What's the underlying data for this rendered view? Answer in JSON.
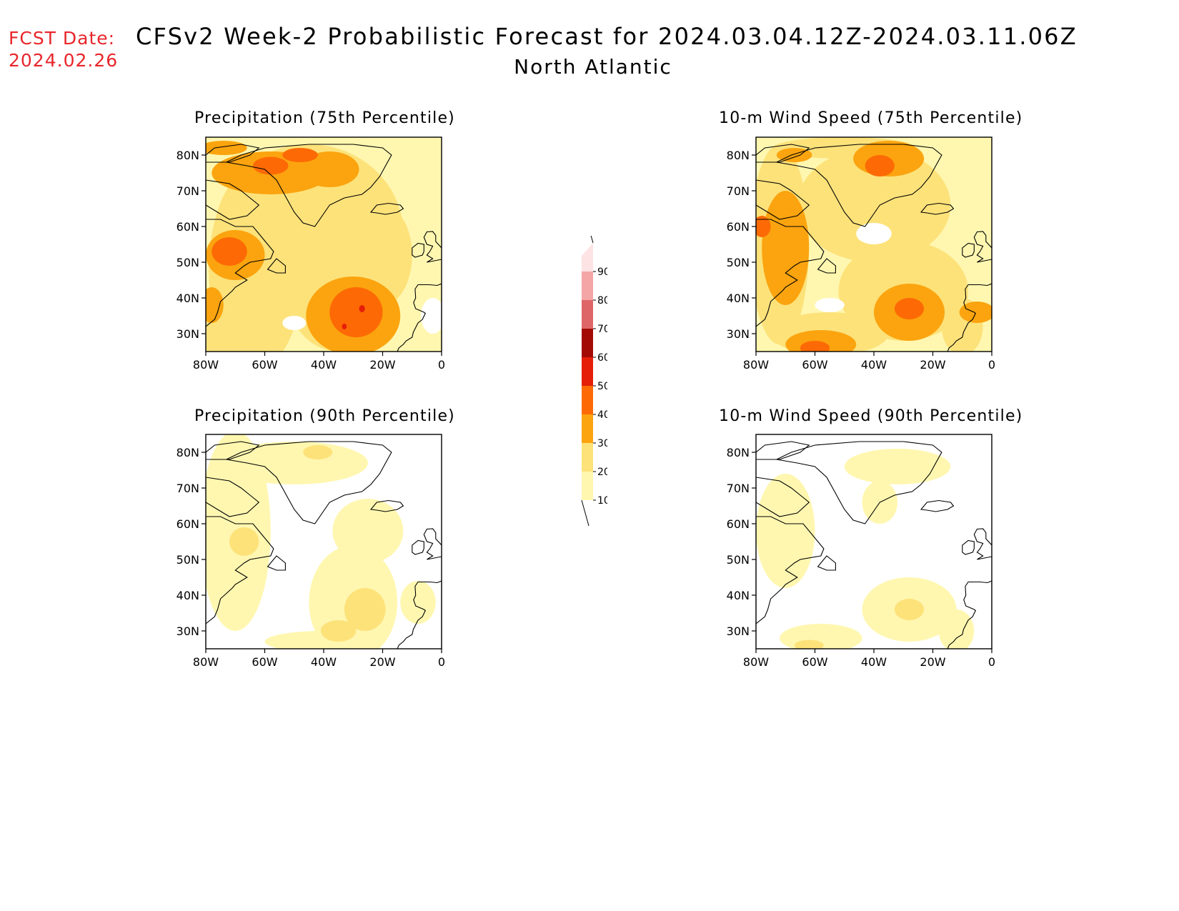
{
  "header": {
    "fcst_label": "FCST Date:",
    "fcst_date": "2024.02.26",
    "title": "CFSv2 Week-2 Probabilistic Forecast for 2024.03.04.12Z-2024.03.11.06Z",
    "subtitle": "North Atlantic"
  },
  "map": {
    "lon_ticks": [
      "80W",
      "60W",
      "40W",
      "20W",
      "0"
    ],
    "lat_ticks": [
      "80N",
      "70N",
      "60N",
      "50N",
      "40N",
      "30N"
    ],
    "lon_range": [
      -80,
      0
    ],
    "lat_range": [
      25,
      85
    ]
  },
  "panels": [
    {
      "id": "precip75",
      "title": "Precipitation (75th Percentile)"
    },
    {
      "id": "wind75",
      "title": "10-m Wind Speed (75th Percentile)"
    },
    {
      "id": "precip90",
      "title": "Precipitation (90th Percentile)"
    },
    {
      "id": "wind90",
      "title": "10-m Wind Speed (90th Percentile)"
    }
  ],
  "colorbar": {
    "levels": [
      "10",
      "20",
      "30",
      "40",
      "50",
      "60",
      "70",
      "80",
      "90"
    ],
    "colors": [
      "#fff7b0",
      "#fde27a",
      "#fba40f",
      "#fd6a05",
      "#e41e08",
      "#a30a05",
      "#de6666",
      "#f4a6a6",
      "#fde3e3"
    ]
  }
}
